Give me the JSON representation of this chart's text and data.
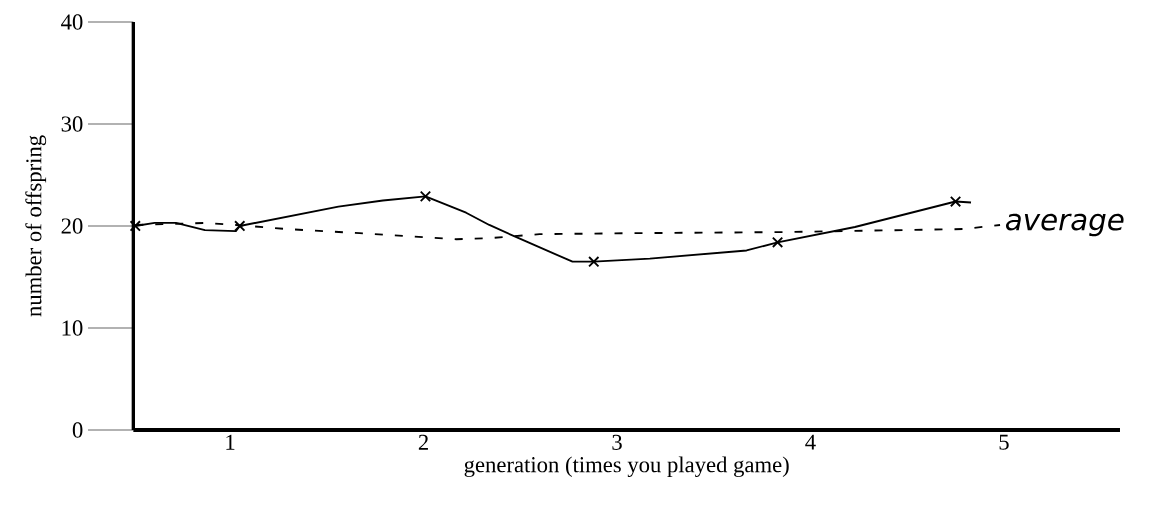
{
  "chart_data": {
    "type": "line",
    "xlabel": "generation (times you played game)",
    "ylabel": "number of offspring",
    "xlim": [
      0.5,
      5.6
    ],
    "xticks": [
      1,
      2,
      3,
      4,
      5
    ],
    "ylim": [
      0,
      40
    ],
    "yticks": [
      0,
      10,
      20,
      30,
      40
    ],
    "grid": false,
    "legend": false,
    "series": [
      {
        "name": "average",
        "line_style": "dashed",
        "color": "#000000",
        "x": [
          0.51,
          0.87,
          1.03,
          1.29,
          1.67,
          2.17,
          2.34,
          2.6,
          3.1,
          3.86,
          4.79,
          4.98
        ],
        "values": [
          20.1,
          20.3,
          20.1,
          19.7,
          19.3,
          18.7,
          18.8,
          19.2,
          19.3,
          19.4,
          19.7,
          20.1
        ]
      },
      {
        "line_style": "solid",
        "color": "#000000",
        "x": [
          0.51,
          0.61,
          0.72,
          0.87,
          1.03,
          1.05,
          1.56,
          1.79,
          2.01,
          2.22,
          2.34,
          2.48,
          2.77,
          2.88,
          3.17,
          3.67,
          3.83,
          4.23,
          4.75,
          4.83
        ],
        "values": [
          20,
          20.3,
          20.3,
          19.6,
          19.5,
          20,
          21.9,
          22.5,
          22.9,
          21.3,
          20.1,
          18.9,
          16.5,
          16.5,
          16.8,
          17.6,
          18.4,
          19.9,
          22.4,
          22.3
        ]
      },
      {
        "type": "scatter",
        "marker": "cross",
        "color": "#000000",
        "x": [
          0.51,
          1.05,
          2.01,
          2.88,
          3.83,
          4.75
        ],
        "values": [
          20,
          20,
          22.9,
          16.5,
          18.4,
          22.4
        ]
      }
    ]
  }
}
